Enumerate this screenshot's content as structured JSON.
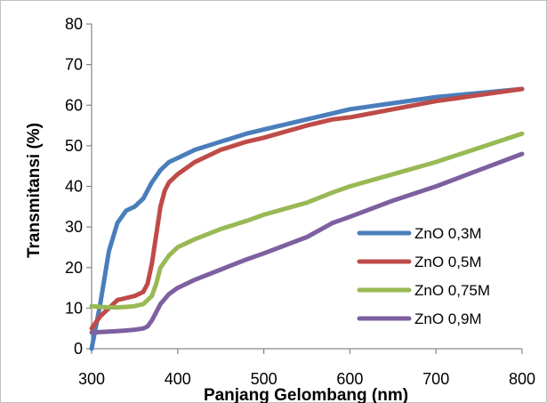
{
  "chart_data": {
    "type": "line",
    "title": "",
    "xlabel": "Panjang Gelombang (nm)",
    "ylabel": "Transmitansi (%)",
    "xlim": [
      300,
      800
    ],
    "ylim": [
      0,
      80
    ],
    "x_ticks": [
      300,
      400,
      500,
      600,
      700,
      800
    ],
    "y_ticks": [
      0,
      10,
      20,
      30,
      40,
      50,
      60,
      70,
      80
    ],
    "grid": false,
    "legend_position": "bottom-right",
    "series": [
      {
        "name": "ZnO 0,3M",
        "color": "#4a7ebb",
        "x": [
          300,
          310,
          320,
          330,
          340,
          350,
          360,
          365,
          370,
          380,
          390,
          400,
          420,
          450,
          480,
          500,
          550,
          580,
          600,
          650,
          700,
          750,
          800
        ],
        "y": [
          0,
          11,
          24,
          31,
          34,
          35,
          37,
          39,
          41,
          44,
          46,
          47,
          49,
          51,
          53,
          54,
          56.5,
          58,
          59,
          60.5,
          62,
          63,
          64
        ]
      },
      {
        "name": "ZnO 0,5M",
        "color": "#be4b48",
        "x": [
          300,
          310,
          320,
          330,
          340,
          350,
          360,
          365,
          370,
          375,
          380,
          385,
          390,
          400,
          420,
          450,
          480,
          500,
          550,
          580,
          600,
          650,
          700,
          750,
          800
        ],
        "y": [
          5,
          8,
          10,
          12,
          12.5,
          13,
          14,
          16,
          21,
          28,
          35,
          39,
          41,
          43,
          46,
          49,
          51,
          52,
          55,
          56.5,
          57,
          59,
          61,
          62.5,
          64
        ]
      },
      {
        "name": "ZnO 0,75M",
        "color": "#98b954",
        "x": [
          300,
          310,
          320,
          330,
          340,
          350,
          360,
          370,
          375,
          380,
          390,
          400,
          420,
          450,
          480,
          500,
          550,
          580,
          600,
          650,
          700,
          750,
          800
        ],
        "y": [
          10.5,
          10.3,
          10.2,
          10.2,
          10.3,
          10.5,
          11,
          13,
          16,
          20,
          23,
          25,
          27,
          29.5,
          31.5,
          33,
          36,
          38.5,
          40,
          43,
          46,
          49.5,
          53
        ]
      },
      {
        "name": "ZnO 0,9M",
        "color": "#7d60a0",
        "x": [
          300,
          320,
          340,
          350,
          360,
          365,
          370,
          380,
          390,
          400,
          420,
          450,
          480,
          500,
          550,
          580,
          600,
          650,
          700,
          750,
          800
        ],
        "y": [
          4,
          4.2,
          4.5,
          4.7,
          5,
          5.5,
          7,
          11,
          13.5,
          15,
          17,
          19.5,
          22,
          23.5,
          27.5,
          31,
          32.5,
          36.5,
          40,
          44,
          48
        ]
      }
    ]
  }
}
